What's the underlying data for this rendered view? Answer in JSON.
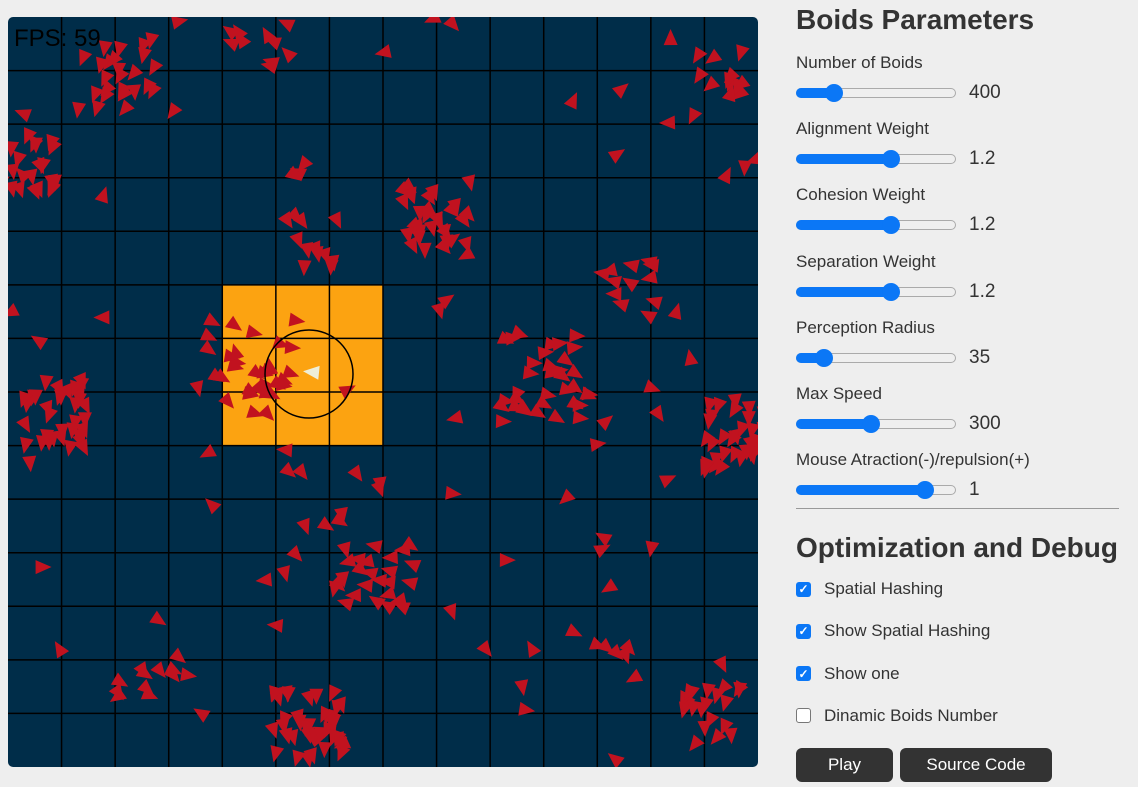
{
  "simulation": {
    "fps_label": "FPS: 59",
    "colors": {
      "background": "#002d49",
      "grid": "#000000",
      "highlight_cells": "#fca311",
      "boid": "#c1121f",
      "selected_boid": "#eeeed8"
    }
  },
  "parameters": {
    "title": "Boids Parameters",
    "sliders": [
      {
        "label": "Number of Boids",
        "value": "400",
        "level": 0.23
      },
      {
        "label": "Alignment Weight",
        "value": "1.2",
        "level": 0.59
      },
      {
        "label": "Cohesion Weight",
        "value": "1.2",
        "level": 0.59
      },
      {
        "label": "Separation Weight",
        "value": "1.2",
        "level": 0.59
      },
      {
        "label": "Perception Radius",
        "value": "35",
        "level": 0.17
      },
      {
        "label": "Max Speed",
        "value": "300",
        "level": 0.46
      },
      {
        "label": "Mouse Atraction(-)/repulsion(+)",
        "value": "1",
        "level": 0.8
      }
    ]
  },
  "debug": {
    "title": "Optimization and Debug",
    "checkboxes": [
      {
        "label": "Spatial Hashing",
        "checked": true
      },
      {
        "label": "Show Spatial Hashing",
        "checked": true
      },
      {
        "label": "Show one",
        "checked": true
      },
      {
        "label": "Dinamic Boids Number",
        "checked": false
      }
    ]
  },
  "buttons": {
    "play": "Play",
    "source": "Source Code"
  }
}
